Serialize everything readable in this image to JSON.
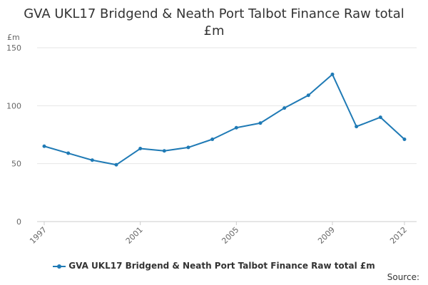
{
  "chart_data": {
    "type": "line",
    "title_line1": "GVA UKL17 Bridgend & Neath Port Talbot Finance Raw total",
    "title_line2": "£m",
    "y_unit_label": "£m",
    "ylim": [
      0,
      150
    ],
    "y_ticks": [
      0,
      50,
      100,
      150
    ],
    "x_tick_labels": [
      "1997",
      "2001",
      "2005",
      "2009",
      "2012"
    ],
    "x": [
      1997,
      1998,
      1999,
      2000,
      2001,
      2002,
      2003,
      2004,
      2005,
      2006,
      2007,
      2008,
      2009,
      2010,
      2011,
      2012
    ],
    "series": [
      {
        "name": "GVA UKL17 Bridgend & Neath Port Talbot Finance Raw total £m",
        "color": "#1f7ab5",
        "values": [
          65,
          59,
          53,
          49,
          63,
          61,
          64,
          71,
          81,
          85,
          98,
          109,
          127,
          82,
          90,
          71
        ]
      }
    ],
    "grid": "horizontal",
    "legend_position": "bottom",
    "source_label": "Source:"
  }
}
